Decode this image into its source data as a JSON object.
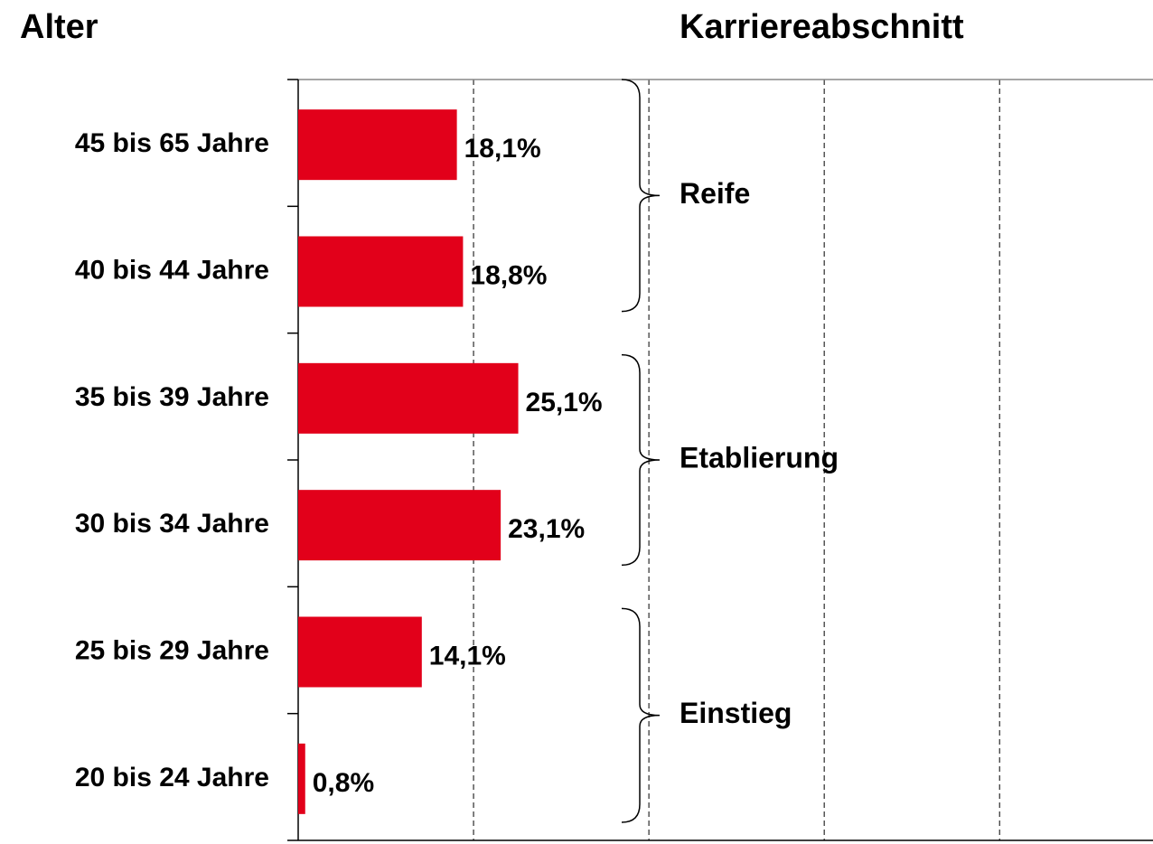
{
  "chart_data": {
    "type": "barh",
    "y_axis_title": "Alter",
    "group_title": "Karriereabschnitt",
    "categories": [
      "45 bis 65 Jahre",
      "40 bis 44 Jahre",
      "35 bis 39 Jahre",
      "30 bis 34 Jahre",
      "25 bis 29 Jahre",
      "20 bis 24 Jahre"
    ],
    "values": [
      18.1,
      18.8,
      25.1,
      23.1,
      14.1,
      0.8
    ],
    "value_labels": [
      "18,1%",
      "18,8%",
      "25,1%",
      "23,1%",
      "14,1%",
      "0,8%"
    ],
    "color": "#e2001a",
    "xlim": [
      0,
      97.5
    ],
    "xticks": [
      20,
      40,
      60,
      80
    ],
    "grid": true,
    "groups": [
      "Reife",
      "Etablierung",
      "Einstieg"
    ]
  }
}
